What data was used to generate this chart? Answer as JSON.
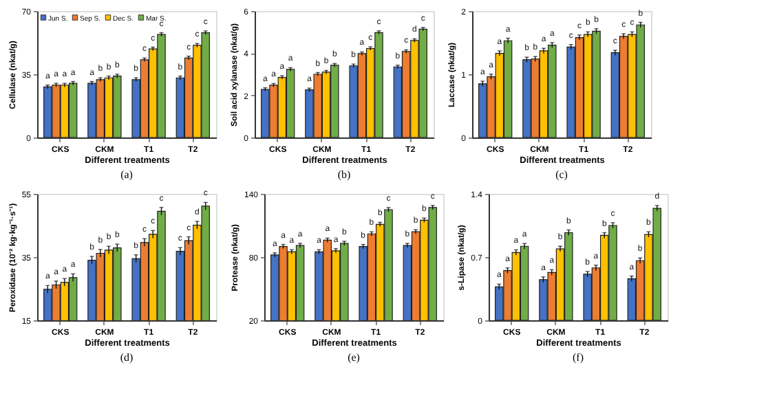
{
  "chart_data": [
    {
      "type": "bar",
      "ylabel": "Cellulase (nkat/g)",
      "xlabel": "Different treatments",
      "categories": [
        "CKS",
        "CKM",
        "T1",
        "T2"
      ],
      "ylim": [
        0,
        70
      ],
      "yticks": [
        0,
        35,
        70
      ],
      "grid": false,
      "legend": "top left",
      "annotations": [
        "(a)"
      ],
      "series": [
        {
          "name": "Jun S.",
          "color": "#4472c4",
          "values": [
            28,
            30,
            32,
            33
          ],
          "errors": [
            1,
            1,
            1,
            1
          ],
          "value_labels": [
            "a",
            "a",
            "b",
            "b"
          ]
        },
        {
          "name": "Sep S.",
          "color": "#ed7d31",
          "values": [
            29,
            32,
            43,
            44
          ],
          "errors": [
            1,
            1,
            1,
            1
          ],
          "value_labels": [
            "a",
            "b",
            "c",
            "c"
          ]
        },
        {
          "name": "Dec S.",
          "color": "#ffc000",
          "values": [
            29,
            33,
            49,
            51
          ],
          "errors": [
            1,
            1,
            1,
            1
          ],
          "value_labels": [
            "a",
            "b",
            "c",
            "c"
          ]
        },
        {
          "name": "Mar S.",
          "color": "#70ad47",
          "values": [
            30,
            34,
            57,
            58
          ],
          "errors": [
            1,
            1,
            1,
            1
          ],
          "value_labels": [
            "a",
            "b",
            "c",
            "c"
          ]
        }
      ]
    },
    {
      "type": "bar",
      "ylabel": "Soil acid xylanase (nkat/g)",
      "xlabel": "Different treatments",
      "categories": [
        "CKS",
        "CKM",
        "T1",
        "T2"
      ],
      "ylim": [
        0,
        6
      ],
      "yticks": [
        0,
        2,
        4,
        6
      ],
      "grid": false,
      "annotations": [
        "(b)"
      ],
      "series": [
        {
          "color": "#4472c4",
          "values": [
            2.28,
            2.26,
            3.4,
            3.35
          ],
          "errors": [
            0.08,
            0.08,
            0.08,
            0.08
          ],
          "value_labels": [
            "a",
            "a",
            "b",
            "b"
          ]
        },
        {
          "color": "#ed7d31",
          "values": [
            2.48,
            3.0,
            3.98,
            4.08
          ],
          "errors": [
            0.08,
            0.08,
            0.08,
            0.08
          ],
          "value_labels": [
            "a",
            "b",
            "a",
            "c"
          ]
        },
        {
          "color": "#ffc000",
          "values": [
            2.85,
            3.1,
            4.22,
            4.6
          ],
          "errors": [
            0.08,
            0.08,
            0.08,
            0.08
          ],
          "value_labels": [
            "a",
            "b",
            "c",
            "d"
          ]
        },
        {
          "color": "#70ad47",
          "values": [
            3.23,
            3.43,
            4.98,
            5.14
          ],
          "errors": [
            0.08,
            0.08,
            0.08,
            0.08
          ],
          "value_labels": [
            "a",
            "b",
            "c",
            "c"
          ]
        }
      ]
    },
    {
      "type": "bar",
      "ylabel": "Laccase (nkat/g)",
      "xlabel": "Different treatments",
      "categories": [
        "CKS",
        "CKM",
        "T1",
        "T2"
      ],
      "ylim": [
        0,
        2
      ],
      "yticks": [
        0,
        1,
        2
      ],
      "grid": false,
      "annotations": [
        "(c)"
      ],
      "series": [
        {
          "color": "#4472c4",
          "values": [
            0.85,
            1.23,
            1.43,
            1.34
          ],
          "errors": [
            0.04,
            0.04,
            0.04,
            0.04
          ],
          "value_labels": [
            "a",
            "b",
            "c",
            "c"
          ]
        },
        {
          "color": "#ed7d31",
          "values": [
            0.96,
            1.24,
            1.58,
            1.6
          ],
          "errors": [
            0.04,
            0.04,
            0.04,
            0.04
          ],
          "value_labels": [
            "a",
            "b",
            "c",
            "c"
          ]
        },
        {
          "color": "#ffc000",
          "values": [
            1.33,
            1.37,
            1.63,
            1.63
          ],
          "errors": [
            0.04,
            0.04,
            0.04,
            0.04
          ],
          "value_labels": [
            "a",
            "a",
            "b",
            "c"
          ]
        },
        {
          "color": "#70ad47",
          "values": [
            1.53,
            1.46,
            1.68,
            1.78
          ],
          "errors": [
            0.04,
            0.04,
            0.04,
            0.04
          ],
          "value_labels": [
            "a",
            "a",
            "b",
            "b"
          ]
        }
      ]
    },
    {
      "type": "bar",
      "ylabel": "Peroxidase (10⁻² kg·kg⁻¹·s⁻¹)",
      "xlabel": "Different treatments",
      "categories": [
        "CKS",
        "CKM",
        "T1",
        "T2"
      ],
      "ylim": [
        15,
        55
      ],
      "yticks": [
        15,
        35,
        55
      ],
      "grid": false,
      "annotations": [
        "(d)"
      ],
      "series": [
        {
          "color": "#4472c4",
          "values": [
            24.8,
            34,
            34.5,
            36.8
          ],
          "errors": [
            1.2,
            1.2,
            1.2,
            1.2
          ],
          "value_labels": [
            "a",
            "b",
            "b",
            "c"
          ]
        },
        {
          "color": "#ed7d31",
          "values": [
            26.2,
            36.2,
            39.6,
            40.2
          ],
          "errors": [
            1.2,
            1.2,
            1.2,
            1.2
          ],
          "value_labels": [
            "a",
            "b",
            "c",
            "c"
          ]
        },
        {
          "color": "#ffc000",
          "values": [
            27,
            37.2,
            42.2,
            45.1
          ],
          "errors": [
            1.2,
            1.2,
            1.2,
            1.2
          ],
          "value_labels": [
            "a",
            "b",
            "c",
            "d"
          ]
        },
        {
          "color": "#70ad47",
          "values": [
            28.5,
            37.9,
            49.5,
            51.1
          ],
          "errors": [
            1.2,
            1.2,
            1.2,
            1.2
          ],
          "value_labels": [
            "a",
            "b",
            "c",
            "c"
          ]
        }
      ]
    },
    {
      "type": "bar",
      "ylabel": "Protease (nkat/g)",
      "xlabel": "Different treatments",
      "categories": [
        "CKS",
        "CKM",
        "T1",
        "T2"
      ],
      "ylim": [
        20,
        140
      ],
      "yticks": [
        20,
        80,
        140
      ],
      "grid": false,
      "annotations": [
        "(e)"
      ],
      "series": [
        {
          "color": "#4472c4",
          "values": [
            82,
            85,
            90,
            91
          ],
          "errors": [
            2,
            2,
            2,
            2
          ],
          "value_labels": [
            "a",
            "a",
            "b",
            "b"
          ]
        },
        {
          "color": "#ed7d31",
          "values": [
            90,
            96,
            102,
            104
          ],
          "errors": [
            2,
            2,
            2,
            2
          ],
          "value_labels": [
            "a",
            "a",
            "b",
            "b"
          ]
        },
        {
          "color": "#ffc000",
          "values": [
            85,
            86,
            111,
            115
          ],
          "errors": [
            2,
            2,
            2,
            2
          ],
          "value_labels": [
            "a",
            "a",
            "b",
            "b"
          ]
        },
        {
          "color": "#70ad47",
          "values": [
            91,
            93,
            125,
            127
          ],
          "errors": [
            2,
            2,
            2,
            2
          ],
          "value_labels": [
            "a",
            "b",
            "c",
            "c"
          ]
        }
      ]
    },
    {
      "type": "bar",
      "ylabel": "s-Lipase (nkat/g)",
      "xlabel": "Different treatments",
      "categories": [
        "CKS",
        "CKM",
        "T1",
        "T2"
      ],
      "ylim": [
        0,
        1.4
      ],
      "yticks": [
        0,
        0.7,
        1.4
      ],
      "grid": false,
      "annotations": [
        "(f)"
      ],
      "series": [
        {
          "color": "#4472c4",
          "values": [
            0.37,
            0.45,
            0.51,
            0.46
          ],
          "errors": [
            0.03,
            0.03,
            0.03,
            0.03
          ],
          "value_labels": [
            "a",
            "a",
            "b",
            "a"
          ]
        },
        {
          "color": "#ed7d31",
          "values": [
            0.55,
            0.53,
            0.58,
            0.66
          ],
          "errors": [
            0.03,
            0.03,
            0.03,
            0.03
          ],
          "value_labels": [
            "a",
            "a",
            "a",
            "b"
          ]
        },
        {
          "color": "#ffc000",
          "values": [
            0.75,
            0.79,
            0.94,
            0.95
          ],
          "errors": [
            0.03,
            0.03,
            0.03,
            0.03
          ],
          "value_labels": [
            "a",
            "b",
            "b",
            "b"
          ]
        },
        {
          "color": "#70ad47",
          "values": [
            0.82,
            0.97,
            1.05,
            1.24
          ],
          "errors": [
            0.03,
            0.03,
            0.03,
            0.03
          ],
          "value_labels": [
            "a",
            "b",
            "c",
            "d"
          ]
        }
      ]
    }
  ]
}
